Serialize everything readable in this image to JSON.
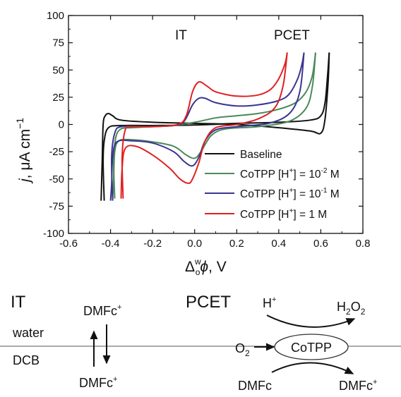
{
  "chart_data": {
    "type": "line",
    "ylabel_main": "j",
    "ylabel_unit": ", μA cm",
    "ylabel_exp": "−1",
    "xlabel_sym": "Δ",
    "xlabel_sup": "w",
    "xlabel_sub": "o",
    "xlabel_phi": "ϕ",
    "xlabel_unit": ", V",
    "xlim": [
      -0.6,
      0.8
    ],
    "ylim": [
      -100,
      100
    ],
    "x_ticks": [
      "-0.6",
      "-0.4",
      "-0.2",
      "0.0",
      "0.2",
      "0.4",
      "0.6",
      "0.8"
    ],
    "y_ticks": [
      "100",
      "75",
      "50",
      "25",
      "0",
      "-25",
      "-50",
      "-75",
      "-100"
    ],
    "annotations": {
      "it": "IT",
      "pcet": "PCET"
    },
    "legend_position": "bottom-right",
    "series": [
      {
        "name": "Baseline",
        "color": "#111111",
        "legend_parts": {
          "main": "Baseline",
          "sup": "",
          "rest": ""
        },
        "forward": [
          [
            -0.43,
            -70
          ],
          [
            -0.435,
            -35
          ],
          [
            -0.43,
            -15
          ],
          [
            -0.41,
            -3
          ],
          [
            -0.35,
            -1
          ],
          [
            -0.2,
            -1
          ],
          [
            0.0,
            -0.5
          ],
          [
            0.2,
            1
          ],
          [
            0.4,
            2
          ],
          [
            0.55,
            4
          ],
          [
            0.6,
            8
          ],
          [
            0.62,
            20
          ],
          [
            0.632,
            45
          ],
          [
            0.64,
            66
          ]
        ],
        "reverse": [
          [
            0.64,
            66
          ],
          [
            0.635,
            40
          ],
          [
            0.62,
            5
          ],
          [
            0.6,
            -8
          ],
          [
            0.55,
            -6
          ],
          [
            0.4,
            -3
          ],
          [
            0.2,
            0
          ],
          [
            0.0,
            1
          ],
          [
            -0.2,
            2
          ],
          [
            -0.35,
            4
          ],
          [
            -0.39,
            8
          ],
          [
            -0.41,
            10
          ],
          [
            -0.425,
            8
          ],
          [
            -0.435,
            0
          ],
          [
            -0.44,
            -35
          ],
          [
            -0.445,
            -70
          ]
        ]
      },
      {
        "name": "CoTPP",
        "color": "#4a8a5a",
        "legend_parts": {
          "main": "CoTPP [H",
          "sup": "+",
          "rest": "] = 10",
          "exp": "-2",
          "tail": " M"
        },
        "forward": [
          [
            -0.38,
            -68
          ],
          [
            -0.385,
            -35
          ],
          [
            -0.375,
            -12
          ],
          [
            -0.35,
            -4
          ],
          [
            -0.3,
            -3
          ],
          [
            -0.2,
            -2
          ],
          [
            -0.1,
            -1
          ],
          [
            0.0,
            2
          ],
          [
            0.1,
            6
          ],
          [
            0.2,
            8
          ],
          [
            0.3,
            10
          ],
          [
            0.4,
            14
          ],
          [
            0.48,
            20
          ],
          [
            0.53,
            30
          ],
          [
            0.56,
            45
          ],
          [
            0.575,
            66
          ]
        ],
        "reverse": [
          [
            0.575,
            66
          ],
          [
            0.56,
            35
          ],
          [
            0.53,
            15
          ],
          [
            0.45,
            3
          ],
          [
            0.3,
            -2
          ],
          [
            0.15,
            -4
          ],
          [
            0.08,
            -10
          ],
          [
            0.03,
            -25
          ],
          [
            0.0,
            -31
          ],
          [
            -0.04,
            -28
          ],
          [
            -0.1,
            -20
          ],
          [
            -0.2,
            -16
          ],
          [
            -0.3,
            -14
          ],
          [
            -0.36,
            -15
          ],
          [
            -0.38,
            -25
          ],
          [
            -0.385,
            -50
          ],
          [
            -0.39,
            -68
          ]
        ]
      },
      {
        "name": "CoTPP",
        "color": "#3a3590",
        "legend_parts": {
          "main": "CoTPP [H",
          "sup": "+",
          "rest": "] = 10",
          "exp": "-1",
          "tail": " M"
        },
        "forward": [
          [
            -0.39,
            -70
          ],
          [
            -0.395,
            -30
          ],
          [
            -0.38,
            -8
          ],
          [
            -0.35,
            -2
          ],
          [
            -0.25,
            -2
          ],
          [
            -0.1,
            -1
          ],
          [
            -0.05,
            3
          ],
          [
            -0.01,
            18
          ],
          [
            0.02,
            24
          ],
          [
            0.05,
            24
          ],
          [
            0.1,
            20
          ],
          [
            0.2,
            17
          ],
          [
            0.3,
            18
          ],
          [
            0.4,
            22
          ],
          [
            0.45,
            28
          ],
          [
            0.49,
            42
          ],
          [
            0.51,
            55
          ],
          [
            0.52,
            66
          ]
        ],
        "reverse": [
          [
            0.52,
            66
          ],
          [
            0.5,
            30
          ],
          [
            0.45,
            10
          ],
          [
            0.35,
            1
          ],
          [
            0.2,
            -2
          ],
          [
            0.1,
            -5
          ],
          [
            0.05,
            -15
          ],
          [
            0.02,
            -30
          ],
          [
            -0.01,
            -38
          ],
          [
            -0.05,
            -34
          ],
          [
            -0.1,
            -25
          ],
          [
            -0.2,
            -17
          ],
          [
            -0.3,
            -15
          ],
          [
            -0.37,
            -16
          ],
          [
            -0.39,
            -30
          ],
          [
            -0.395,
            -55
          ],
          [
            -0.4,
            -70
          ]
        ]
      },
      {
        "name": "CoTPP",
        "color": "#e02020",
        "legend_parts": {
          "main": "CoTPP [H",
          "sup": "+",
          "rest": "] = 1 M"
        },
        "forward": [
          [
            -0.34,
            -68
          ],
          [
            -0.345,
            -30
          ],
          [
            -0.33,
            -5
          ],
          [
            -0.3,
            -2
          ],
          [
            -0.2,
            -2
          ],
          [
            -0.08,
            0
          ],
          [
            -0.04,
            8
          ],
          [
            -0.01,
            30
          ],
          [
            0.02,
            39
          ],
          [
            0.06,
            35
          ],
          [
            0.1,
            30
          ],
          [
            0.2,
            26
          ],
          [
            0.3,
            27
          ],
          [
            0.36,
            32
          ],
          [
            0.4,
            42
          ],
          [
            0.43,
            56
          ],
          [
            0.44,
            66
          ]
        ],
        "reverse": [
          [
            0.44,
            66
          ],
          [
            0.42,
            35
          ],
          [
            0.38,
            15
          ],
          [
            0.3,
            5
          ],
          [
            0.2,
            0
          ],
          [
            0.1,
            -3
          ],
          [
            0.05,
            -15
          ],
          [
            0.02,
            -35
          ],
          [
            -0.01,
            -50
          ],
          [
            -0.03,
            -54
          ],
          [
            -0.07,
            -50
          ],
          [
            -0.12,
            -40
          ],
          [
            -0.2,
            -28
          ],
          [
            -0.28,
            -20
          ],
          [
            -0.33,
            -22
          ],
          [
            -0.345,
            -40
          ],
          [
            -0.35,
            -68
          ]
        ]
      }
    ]
  },
  "scheme": {
    "left_title": "IT",
    "right_title": "PCET",
    "phase_top": "water",
    "phase_bottom": "DCB",
    "dmfc_plus_base": "DMFc",
    "dmfc_plus_sup": "+",
    "h_base": "H",
    "h_sup": "+",
    "h2o2_h": "H",
    "h2o2_sub1": "2",
    "h2o2_o": "O",
    "h2o2_sub2": "2",
    "o2_base": "O",
    "o2_sub": "2",
    "catalyst": "CoTPP",
    "dmfc_plain": "DMFc",
    "dmfc_out_base": "DMFc",
    "dmfc_out_sup": "+"
  }
}
